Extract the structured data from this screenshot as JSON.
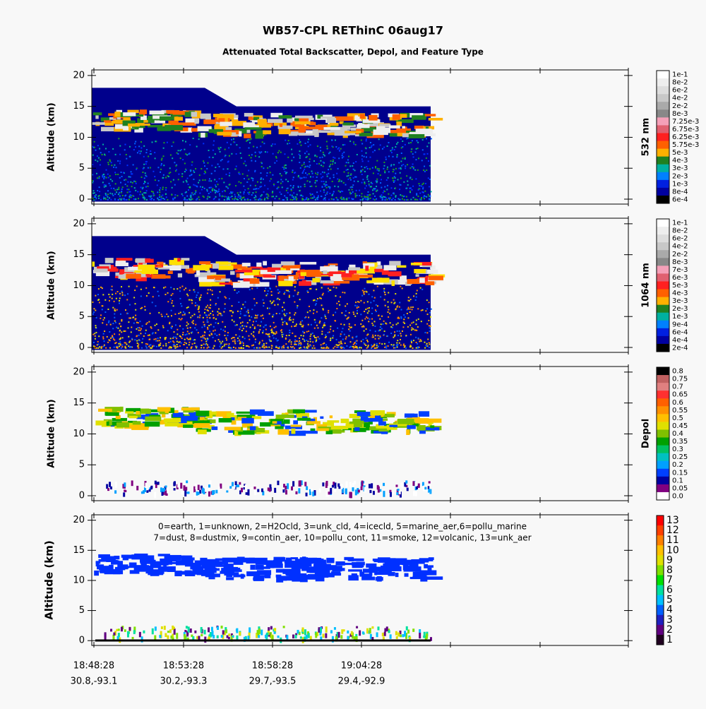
{
  "title": "WB57-CPL  REThinC  06aug17",
  "subtitle": "Attenuated Total Backscatter, Depol, and Feature Type",
  "chart_data": [
    {
      "type": "curtain",
      "ylabel": "Altitude (km)",
      "ylim": [
        -0.8,
        20.9
      ],
      "yticks": [
        0,
        5,
        10,
        15,
        20
      ],
      "colorbar_label": "532 nm",
      "colorbar_ticks": [
        {
          "value": 0.1,
          "label": "1e-1"
        },
        {
          "value": 0.08,
          "label": "8e-2"
        },
        {
          "value": 0.06,
          "label": "6e-2"
        },
        {
          "value": 0.04,
          "label": "4e-2"
        },
        {
          "value": 0.02,
          "label": "2e-2"
        },
        {
          "value": 0.008,
          "label": "8e-3"
        },
        {
          "value": 0.00725,
          "label": "7.25e-3"
        },
        {
          "value": 0.00675,
          "label": "6.75e-3"
        },
        {
          "value": 0.00625,
          "label": "6.25e-3"
        },
        {
          "value": 0.00575,
          "label": "5.75e-3"
        },
        {
          "value": 0.005,
          "label": "5e-3"
        },
        {
          "value": 0.004,
          "label": "4e-3"
        },
        {
          "value": 0.003,
          "label": "3e-3"
        },
        {
          "value": 0.002,
          "label": "2e-3"
        },
        {
          "value": 0.001,
          "label": "1e-3"
        },
        {
          "value": 0.0008,
          "label": "8e-4"
        },
        {
          "value": 0.0006,
          "label": "6e-4"
        }
      ],
      "colorbar_colors": [
        "#ffffff",
        "#eeeeee",
        "#dddddd",
        "#c8c8c8",
        "#aaaaaa",
        "#888888",
        "#f4a0b8",
        "#e06070",
        "#ff2020",
        "#ff6000",
        "#ffb000",
        "#208020",
        "#00b0a0",
        "#0080ff",
        "#0020e0",
        "#0000a0",
        "#000000"
      ]
    },
    {
      "type": "curtain",
      "ylabel": "Altitude (km)",
      "ylim": [
        -0.8,
        20.9
      ],
      "yticks": [
        0,
        5,
        10,
        15,
        20
      ],
      "colorbar_label": "1064 nm",
      "colorbar_ticks": [
        {
          "value": 0.1,
          "label": "1e-1"
        },
        {
          "value": 0.08,
          "label": "8e-2"
        },
        {
          "value": 0.06,
          "label": "6e-2"
        },
        {
          "value": 0.04,
          "label": "4e-2"
        },
        {
          "value": 0.02,
          "label": "2e-2"
        },
        {
          "value": 0.008,
          "label": "8e-3"
        },
        {
          "value": 0.007,
          "label": "7e-3"
        },
        {
          "value": 0.006,
          "label": "6e-3"
        },
        {
          "value": 0.005,
          "label": "5e-3"
        },
        {
          "value": 0.004,
          "label": "4e-3"
        },
        {
          "value": 0.003,
          "label": "3e-3"
        },
        {
          "value": 0.002,
          "label": "2e-3"
        },
        {
          "value": 0.001,
          "label": "1e-3"
        },
        {
          "value": 0.0009,
          "label": "9e-4"
        },
        {
          "value": 0.0006,
          "label": "6e-4"
        },
        {
          "value": 0.0004,
          "label": "4e-4"
        },
        {
          "value": 0.0002,
          "label": "2e-4"
        }
      ],
      "colorbar_colors": [
        "#ffffff",
        "#eeeeee",
        "#dddddd",
        "#c8c8c8",
        "#aaaaaa",
        "#888888",
        "#f4a0b8",
        "#e06070",
        "#ff2020",
        "#ff6000",
        "#ffb000",
        "#208020",
        "#00b0a0",
        "#0080ff",
        "#0020e0",
        "#0000a0",
        "#000000"
      ]
    },
    {
      "type": "curtain",
      "ylabel": "Altitude (km)",
      "ylim": [
        -0.8,
        20.9
      ],
      "yticks": [
        0,
        5,
        10,
        15,
        20
      ],
      "colorbar_label": "Depol",
      "colorbar_ticks": [
        0.8,
        0.75,
        0.7,
        0.65,
        0.6,
        0.55,
        0.5,
        0.45,
        0.4,
        0.35,
        0.3,
        0.25,
        0.2,
        0.15,
        0.1,
        0.05,
        {
          "value": 0,
          "label": "0.0"
        }
      ],
      "colorbar_colors": [
        "#000000",
        "#c06060",
        "#e08080",
        "#ff3030",
        "#ff6000",
        "#ff9000",
        "#ffc000",
        "#e0e000",
        "#80c000",
        "#00a000",
        "#00c060",
        "#00c0c0",
        "#00a0ff",
        "#0040ff",
        "#0000a0",
        "#800080",
        "#ffffff"
      ]
    },
    {
      "type": "curtain",
      "ylabel": "Altitude (km)",
      "ylim": [
        -0.8,
        20.9
      ],
      "yticks": [
        0,
        5,
        10,
        15,
        20
      ],
      "colorbar_ticks": [
        13,
        12,
        11,
        10,
        9,
        8,
        7,
        6,
        5,
        4,
        3,
        2,
        1
      ],
      "colorbar_colors": [
        "#ff0000",
        "#ff4000",
        "#ff8000",
        "#ffc000",
        "#e0e000",
        "#80e000",
        "#00e000",
        "#00e0a0",
        "#00c0ff",
        "#0060ff",
        "#2020c0",
        "#600080",
        "#200020"
      ],
      "annotations": [
        "0=earth, 1=unknown, 2=H2Ocld, 3=unk_cld, 4=icecld, 5=marine_aer,6=pollu_marine",
        "7=dust, 8=dustmix, 9=contin_aer, 10=pollu_cont, 11=smoke, 12=volcanic, 13=unk_aer"
      ],
      "x_labels": [
        {
          "time": "18:48:28",
          "location": "30.8,-93.1"
        },
        {
          "time": "18:53:28",
          "location": "30.2,-93.3"
        },
        {
          "time": "18:58:28",
          "location": "29.7,-93.5"
        },
        {
          "time": "19:04:28",
          "location": "29.4,-92.9"
        }
      ]
    }
  ]
}
